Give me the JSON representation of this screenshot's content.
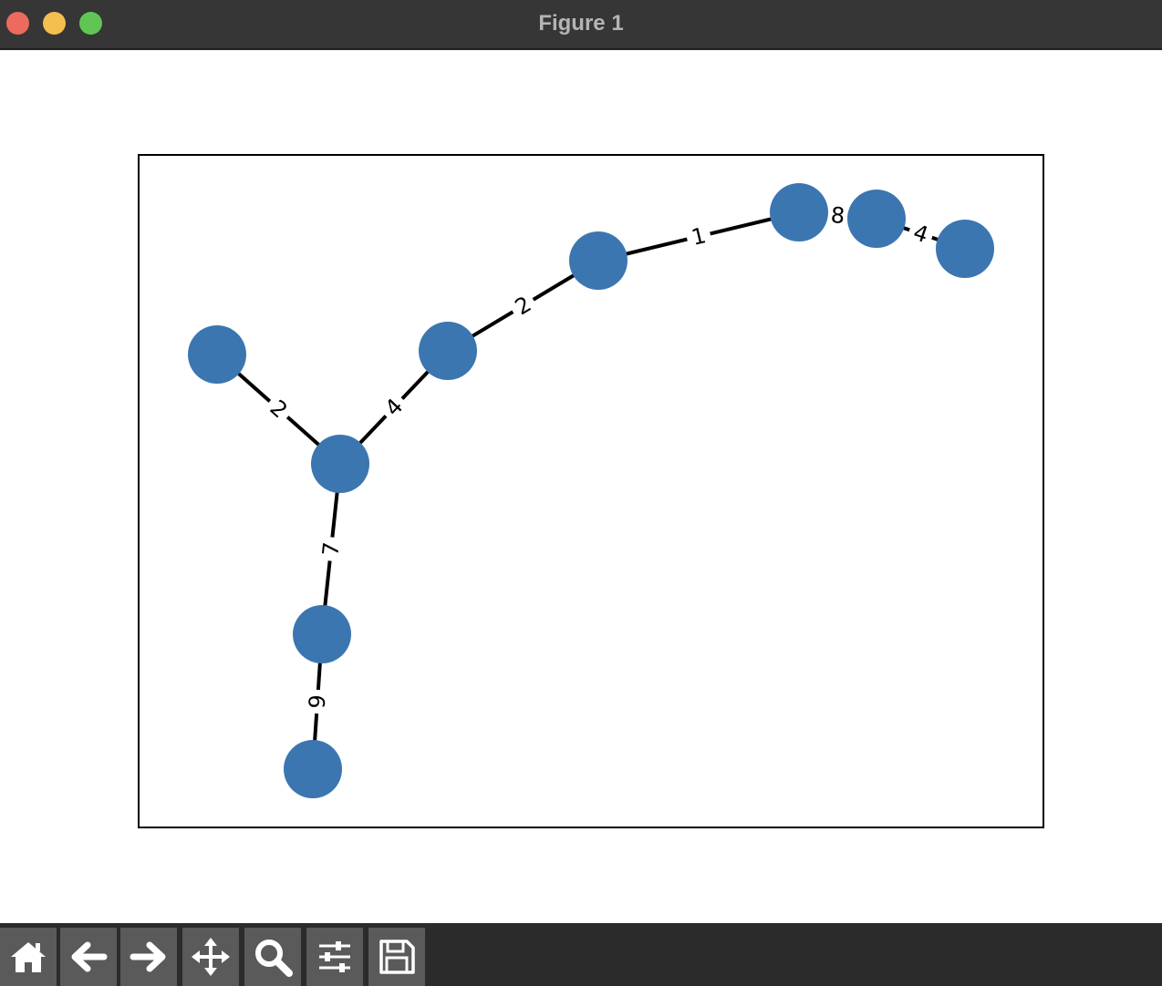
{
  "window": {
    "title": "Figure 1"
  },
  "graph": {
    "nodes": [
      {
        "id": "n0"
      },
      {
        "id": "n1"
      },
      {
        "id": "n2"
      },
      {
        "id": "n3"
      },
      {
        "id": "n4"
      },
      {
        "id": "n5"
      },
      {
        "id": "n6"
      },
      {
        "id": "n7"
      },
      {
        "id": "n8"
      }
    ],
    "edges": [
      {
        "from": "n0",
        "to": "n1",
        "label": "2"
      },
      {
        "from": "n1",
        "to": "n2",
        "label": "4"
      },
      {
        "from": "n2",
        "to": "n3",
        "label": "2"
      },
      {
        "from": "n3",
        "to": "n4",
        "label": "1"
      },
      {
        "from": "n4",
        "to": "n5",
        "label": "8"
      },
      {
        "from": "n5",
        "to": "n6",
        "label": "4"
      },
      {
        "from": "n1",
        "to": "n7",
        "label": "7"
      },
      {
        "from": "n7",
        "to": "n8",
        "label": "9"
      }
    ],
    "node_color": "#3b76b0",
    "edge_color": "#000000"
  },
  "toolbar": {
    "buttons": [
      {
        "name": "home-button",
        "icon": "home-icon"
      },
      {
        "name": "back-button",
        "icon": "arrow-left-icon"
      },
      {
        "name": "forward-button",
        "icon": "arrow-right-icon"
      },
      {
        "name": "pan-button",
        "icon": "move-icon"
      },
      {
        "name": "zoom-button",
        "icon": "magnifier-icon"
      },
      {
        "name": "configure-subplots-button",
        "icon": "sliders-icon"
      },
      {
        "name": "save-button",
        "icon": "floppy-disk-icon"
      }
    ]
  }
}
